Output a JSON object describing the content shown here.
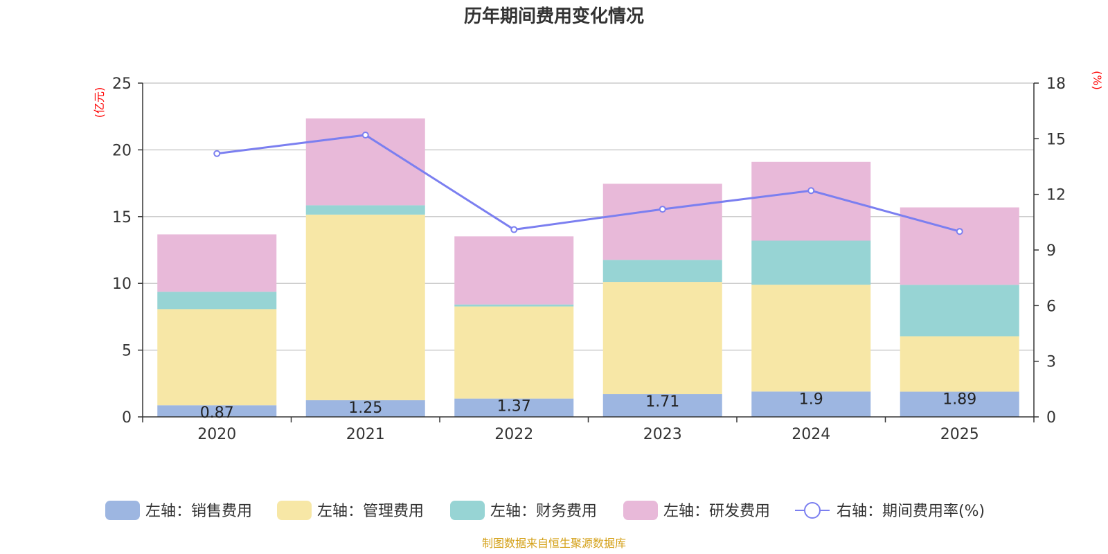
{
  "chart_data": {
    "type": "bar",
    "stacked": true,
    "title": "历年期间费用变化情况",
    "categories": [
      "2020",
      "2021",
      "2022",
      "2023",
      "2024",
      "2025"
    ],
    "left_axis": {
      "unit": "(亿元)",
      "ylim": [
        0,
        25
      ],
      "ticks": [
        0,
        5,
        10,
        15,
        20,
        25
      ]
    },
    "right_axis": {
      "unit": "(%)",
      "ylim": [
        0,
        18
      ],
      "ticks": [
        0,
        3,
        6,
        9,
        12,
        15,
        18
      ]
    },
    "series": [
      {
        "name": "左轴：销售费用",
        "axis": "left",
        "color": "#9db6e1",
        "values": [
          0.87,
          1.25,
          1.37,
          1.71,
          1.9,
          1.89
        ],
        "labels": [
          "0.87",
          "1.25",
          "1.37",
          "1.71",
          "1.9",
          "1.89"
        ]
      },
      {
        "name": "左轴：管理费用",
        "axis": "left",
        "color": "#f7e7a6",
        "values": [
          7.2,
          13.9,
          6.9,
          8.4,
          8.0,
          4.15
        ]
      },
      {
        "name": "左轴：财务费用",
        "axis": "left",
        "color": "#97d4d4",
        "values": [
          1.3,
          0.7,
          0.15,
          1.65,
          3.3,
          3.85
        ]
      },
      {
        "name": "左轴：研发费用",
        "axis": "left",
        "color": "#e8b9d9",
        "values": [
          4.3,
          6.5,
          5.1,
          5.7,
          5.9,
          5.8
        ]
      },
      {
        "name": "右轴：期间费用率(%)",
        "axis": "right",
        "type": "line",
        "color": "#7b7ff0",
        "values": [
          14.2,
          15.2,
          10.1,
          11.2,
          12.2,
          10.0
        ]
      }
    ],
    "legend_position": "bottom",
    "source": "制图数据来自恒生聚源数据库"
  }
}
